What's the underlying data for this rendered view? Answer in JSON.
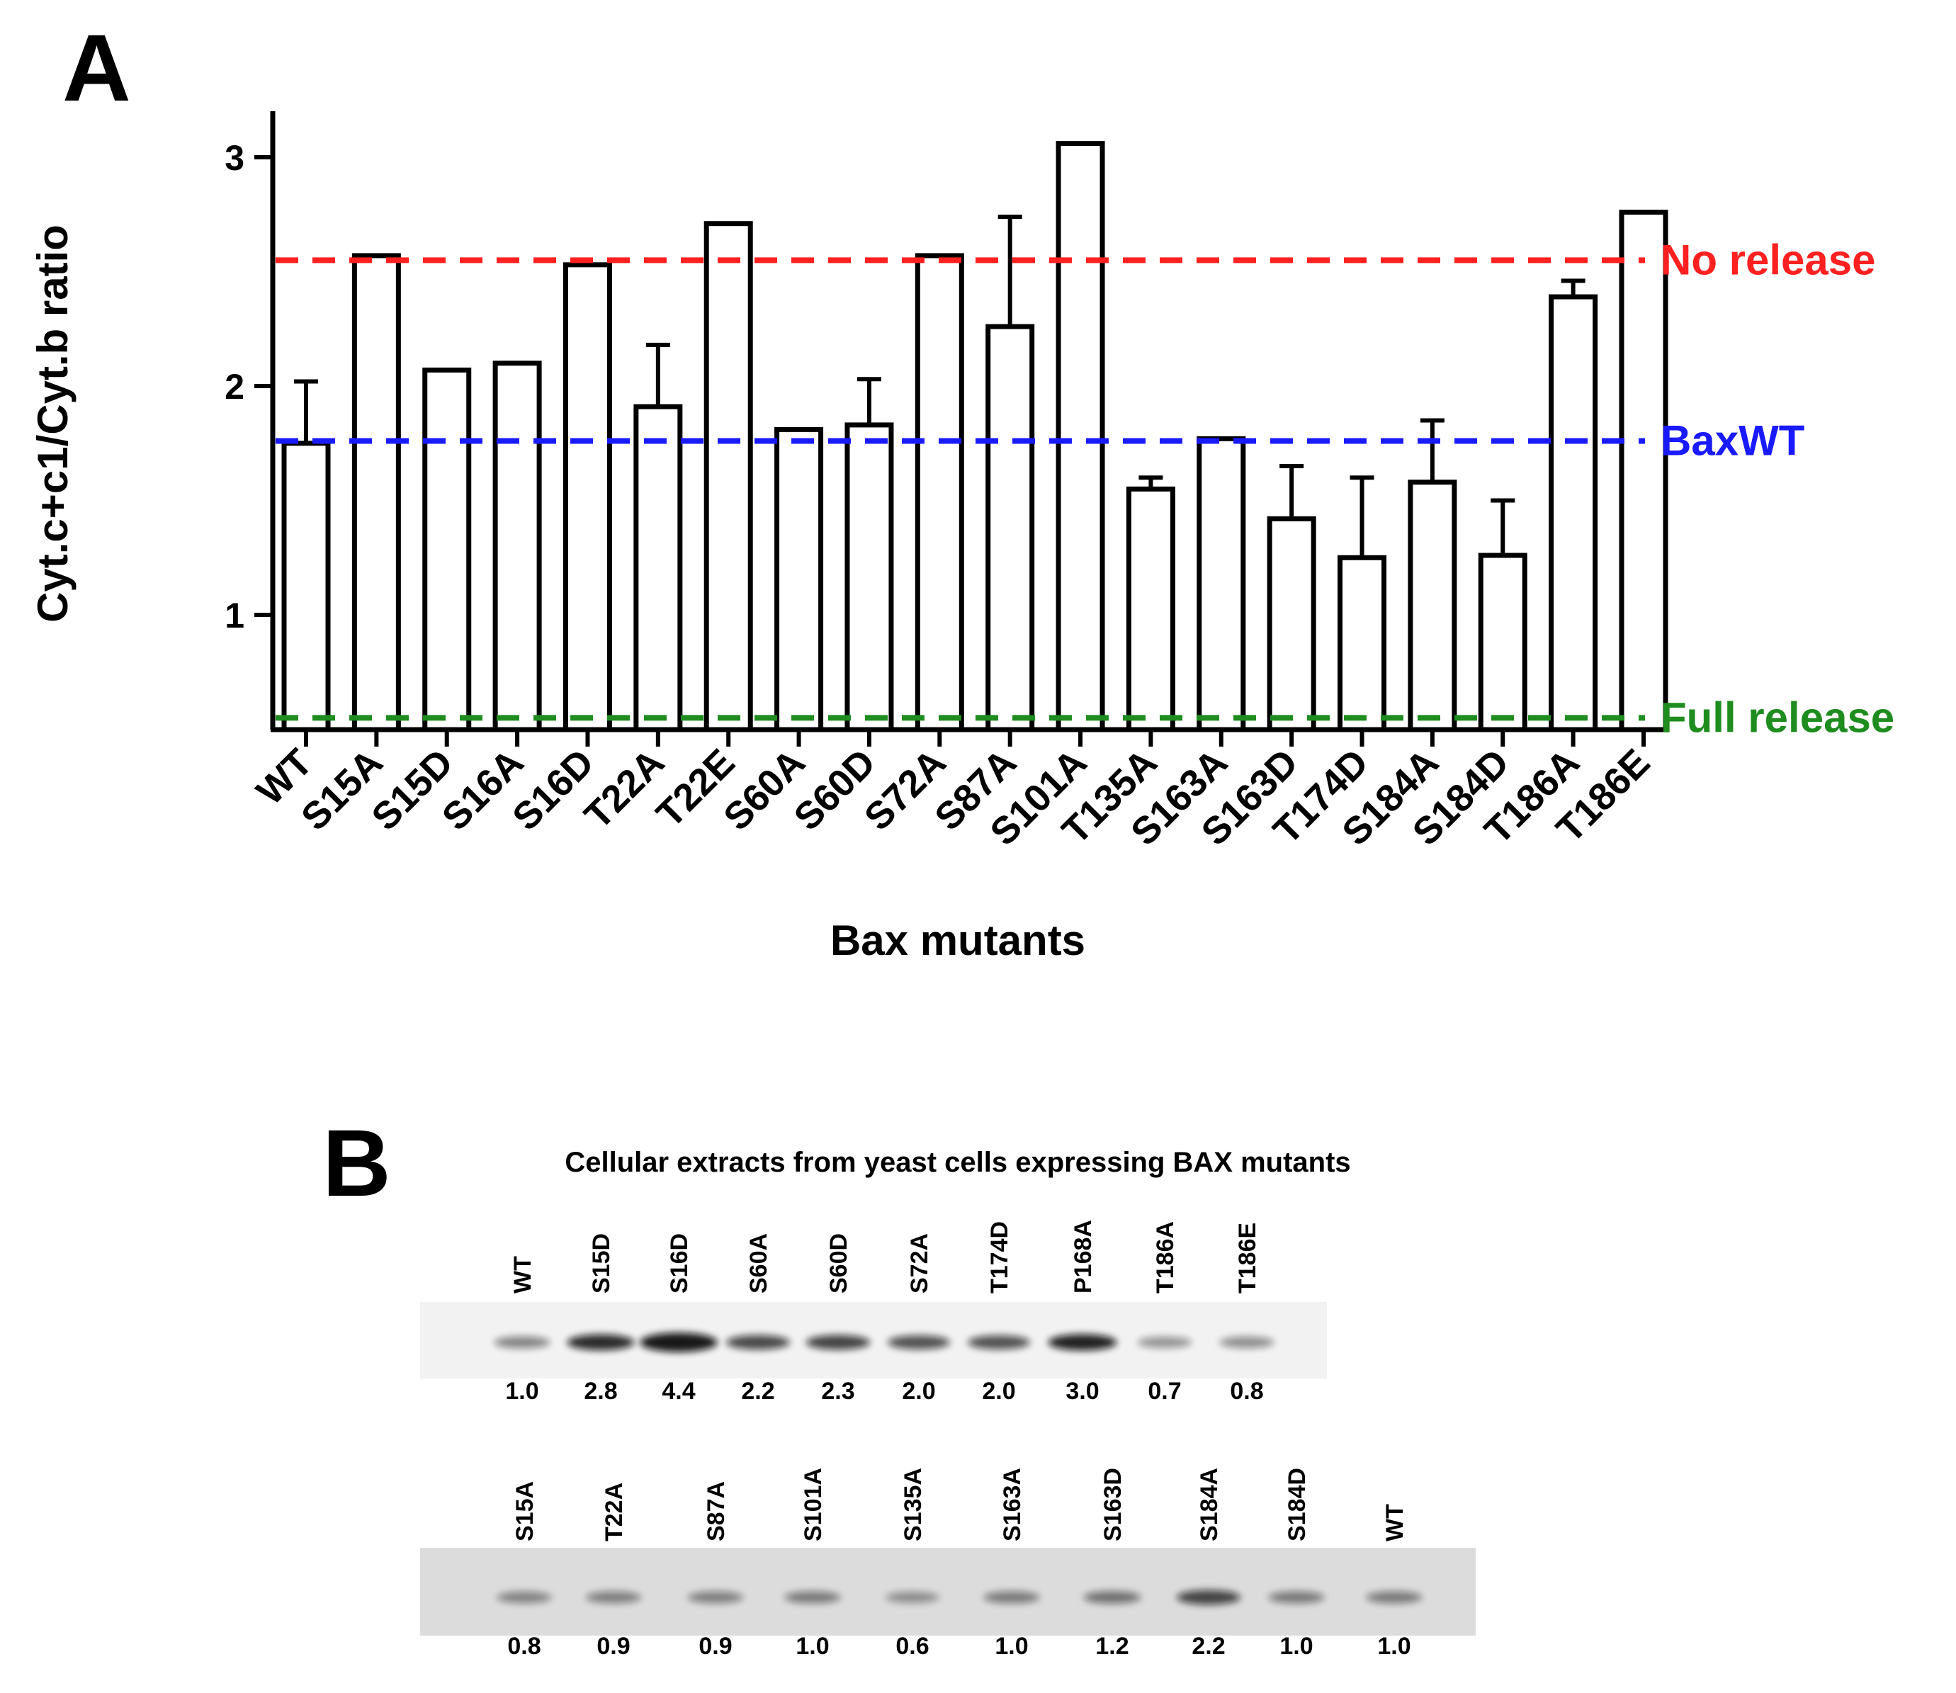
{
  "panel_a_label": "A",
  "panel_b_label": "B",
  "chart_data": {
    "type": "bar",
    "title": "",
    "xlabel": "Bax mutants",
    "ylabel": "Cyt.c+c1/Cyt.b ratio",
    "ylim": [
      0.5,
      3.2
    ],
    "yticks": [
      "1",
      "2",
      "3"
    ],
    "categories": [
      "WT",
      "S15A",
      "S15D",
      "S16A",
      "S16D",
      "T22A",
      "T22E",
      "S60A",
      "S60D",
      "S72A",
      "S87A",
      "S101A",
      "T135A",
      "S163A",
      "S163D",
      "T174D",
      "S184A",
      "S184D",
      "T186A",
      "T186E"
    ],
    "values": [
      1.75,
      2.57,
      2.07,
      2.1,
      2.53,
      1.91,
      2.71,
      1.81,
      1.83,
      2.57,
      2.26,
      3.06,
      1.55,
      1.77,
      1.42,
      1.25,
      1.58,
      1.26,
      2.39,
      2.76
    ],
    "errors": [
      0.27,
      0,
      0,
      0,
      0,
      0.27,
      0,
      0,
      0.2,
      0,
      0.48,
      0,
      0.05,
      0,
      0.23,
      0.35,
      0.27,
      0.24,
      0.07,
      0
    ],
    "reference_lines": [
      {
        "label": "No release",
        "value": 2.55,
        "color": "#ff2020"
      },
      {
        "label": "BaxWT",
        "value": 1.76,
        "color": "#1a1aff"
      },
      {
        "label": "Full release",
        "value": 0.55,
        "color": "#1e8c1e"
      }
    ]
  },
  "blot": {
    "title": "Cellular extracts from yeast cells expressing BAX mutants",
    "row1": {
      "lanes": [
        "WT",
        "S15D",
        "S16D",
        "S60A",
        "S60D",
        "S72A",
        "T174D",
        "P168A",
        "T186A",
        "T186E"
      ],
      "quant": [
        "1.0",
        "2.8",
        "4.4",
        "2.2",
        "2.3",
        "2.0",
        "2.0",
        "3.0",
        "0.7",
        "0.8"
      ],
      "intensity": [
        1.0,
        2.8,
        4.4,
        2.2,
        2.3,
        2.0,
        2.0,
        3.0,
        0.7,
        0.8
      ]
    },
    "row2": {
      "lanes": [
        "S15A",
        "T22A",
        "S87A",
        "S101A",
        "S135A",
        "S163A",
        "S163D",
        "S184A",
        "S184D",
        "WT"
      ],
      "quant": [
        "0.8",
        "0.9",
        "0.9",
        "1.0",
        "0.6",
        "1.0",
        "1.2",
        "2.2",
        "1.0",
        "1.0"
      ],
      "intensity": [
        0.8,
        0.9,
        0.9,
        1.0,
        0.6,
        1.0,
        1.2,
        2.2,
        1.0,
        1.0
      ]
    }
  }
}
